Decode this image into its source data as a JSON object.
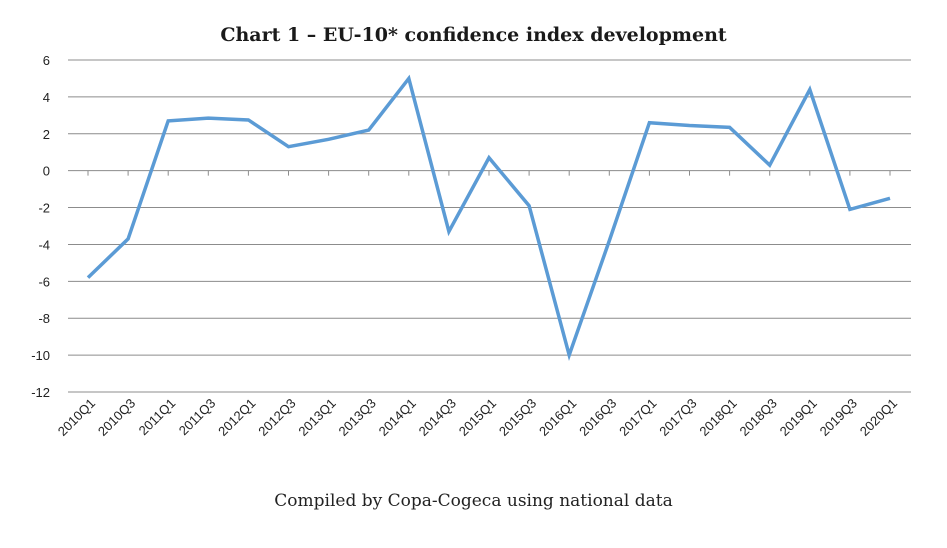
{
  "chart_data": {
    "type": "line",
    "title": "Chart 1 – EU-10* confidence index development",
    "caption": "Compiled by Copa-Cogeca using national data",
    "categories": [
      "2010Q1",
      "2010Q3",
      "2011Q1",
      "2011Q3",
      "2012Q1",
      "2012Q3",
      "2013Q1",
      "2013Q3",
      "2014Q1",
      "2014Q3",
      "2015Q1",
      "2015Q3",
      "2016Q1",
      "2016Q3",
      "2017Q1",
      "2017Q3",
      "2018Q1",
      "2018Q3",
      "2019Q1",
      "2019Q3",
      "2020Q1"
    ],
    "series": [
      {
        "values": [
          -5.8,
          -3.7,
          2.7,
          2.85,
          2.75,
          1.3,
          1.7,
          2.2,
          5.0,
          -3.3,
          0.7,
          -1.9,
          -10.0,
          -3.8,
          2.6,
          2.45,
          2.35,
          0.3,
          4.4,
          -2.1,
          -1.5
        ]
      }
    ],
    "ylim": [
      -12,
      6
    ],
    "yticks": [
      6,
      4,
      2,
      0,
      -2,
      -4,
      -6,
      -8,
      -10,
      -12
    ],
    "grid": true,
    "line_color": "#5B9BD5"
  }
}
